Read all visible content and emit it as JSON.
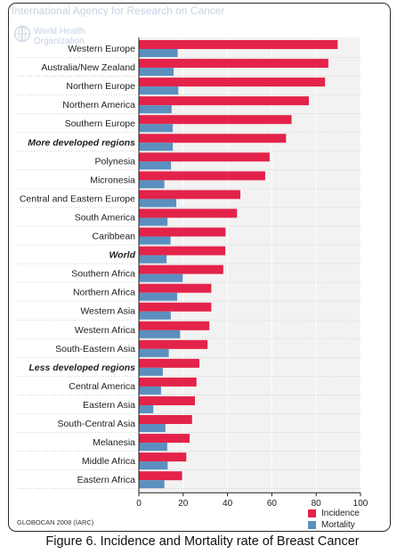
{
  "header": {
    "agency": "International Agency for Research on Cancer",
    "organization_line1": "World Health",
    "organization_line2": "Organization"
  },
  "source": "GLOBOCAN 2008 (IARC)",
  "caption": "Figure 6. Incidence and Mortality rate of Breast Cancer",
  "colors": {
    "incidence": "#e3234a",
    "mortality": "#5b8fbf"
  },
  "chart_data": {
    "type": "bar",
    "orientation": "horizontal",
    "title": "",
    "xlabel": "",
    "ylabel": "",
    "xlim": [
      0,
      100
    ],
    "x_ticks": [
      0,
      20,
      40,
      60,
      80,
      100
    ],
    "grid": "dotted horizontal",
    "legend_position": "bottom-right",
    "categories": [
      "Western Europe",
      "Australia/New Zealand",
      "Northern Europe",
      "Northern America",
      "Southern Europe",
      "More developed regions",
      "Polynesia",
      "Micronesia",
      "Central and Eastern Europe",
      "South America",
      "Caribbean",
      "World",
      "Southern Africa",
      "Northern Africa",
      "Western Asia",
      "Western Africa",
      "South-Eastern Asia",
      "Less developed regions",
      "Central America",
      "Eastern Asia",
      "South-Central Asia",
      "Melanesia",
      "Middle Africa",
      "Eastern Africa"
    ],
    "emphasized_categories": [
      "More developed regions",
      "World",
      "Less developed regions"
    ],
    "series": [
      {
        "name": "Incidence",
        "values": [
          89.7,
          85.5,
          84.0,
          76.7,
          68.9,
          66.4,
          59.0,
          57.0,
          45.8,
          44.3,
          39.1,
          39.0,
          38.1,
          32.7,
          32.7,
          31.8,
          31.0,
          27.3,
          26.0,
          25.3,
          24.0,
          22.9,
          21.4,
          19.5
        ]
      },
      {
        "name": "Mortality",
        "values": [
          17.5,
          15.7,
          17.8,
          14.8,
          15.3,
          15.3,
          14.5,
          11.5,
          16.9,
          12.9,
          14.3,
          12.5,
          19.8,
          17.3,
          14.4,
          18.6,
          13.5,
          10.8,
          10.0,
          6.5,
          12.0,
          12.8,
          13.0,
          11.5
        ]
      }
    ]
  }
}
